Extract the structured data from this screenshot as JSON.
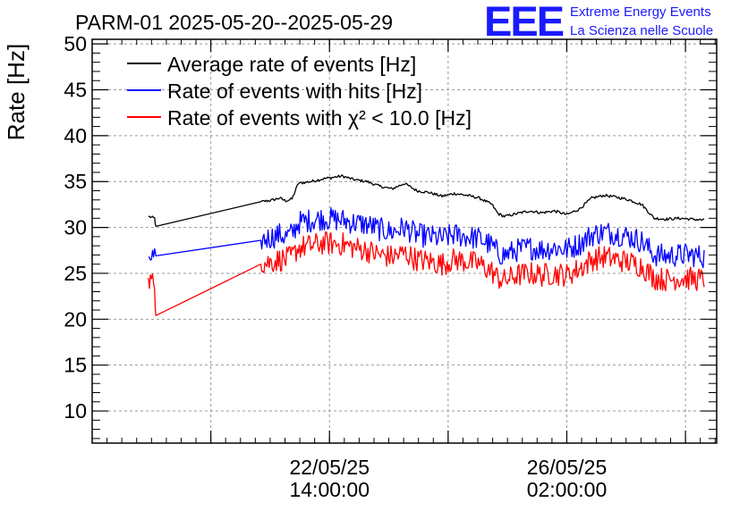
{
  "chart_data": {
    "type": "line",
    "title": "PARM-01 2025-05-20--2025-05-29",
    "ylabel": "Rate [Hz]",
    "xlabel": "",
    "ylim": [
      6.5,
      50.5
    ],
    "xlim": [
      0,
      100
    ],
    "yticks": [
      10,
      15,
      20,
      25,
      30,
      35,
      40,
      45,
      50
    ],
    "xticks": [
      {
        "x": 38,
        "line1": "22/05/25",
        "line2": "14:00:00"
      },
      {
        "x": 76,
        "line1": "26/05/25",
        "line2": "02:00:00"
      }
    ],
    "grid": true,
    "legend_position": "top-left",
    "logo": {
      "mark": "EEE",
      "line1": "Extreme Energy Events",
      "line2": "La Scienza nelle Scuole"
    },
    "series": [
      {
        "name": "Average rate of events [Hz]",
        "color": "#000000",
        "noise": 0.15,
        "x": [
          9,
          10,
          10.2,
          27,
          29,
          30,
          31,
          32,
          33,
          35,
          37,
          40,
          42,
          44,
          46,
          48,
          50,
          52,
          54,
          56,
          58,
          60,
          62,
          64,
          65,
          66,
          68,
          70,
          72,
          74,
          76,
          78,
          80,
          82,
          84,
          86,
          88,
          90,
          92,
          94,
          96,
          98
        ],
        "y": [
          31.2,
          31.0,
          30.0,
          32.8,
          33.0,
          33.2,
          32.9,
          33.1,
          34.8,
          35.0,
          35.3,
          35.6,
          35.2,
          35.0,
          34.5,
          34.2,
          34.8,
          34.0,
          33.8,
          33.4,
          33.7,
          33.5,
          33.2,
          32.5,
          31.5,
          31.2,
          31.5,
          31.8,
          31.6,
          31.8,
          31.4,
          32.0,
          33.2,
          33.5,
          33.3,
          33.0,
          32.5,
          31.0,
          30.9,
          31.0,
          30.9,
          30.8
        ]
      },
      {
        "name": "Rate of events with hits [Hz]",
        "color": "#0000ff",
        "noise": 1.3,
        "x": [
          9,
          10,
          10.2,
          27,
          29,
          30,
          31,
          32,
          33,
          35,
          37,
          40,
          42,
          44,
          46,
          48,
          50,
          52,
          54,
          56,
          58,
          60,
          62,
          64,
          65,
          66,
          68,
          70,
          72,
          74,
          76,
          78,
          80,
          82,
          84,
          86,
          88,
          90,
          92,
          94,
          96,
          98
        ],
        "y": [
          26.8,
          26.6,
          25.7,
          28.6,
          29.0,
          29.2,
          29.0,
          29.3,
          30.5,
          30.8,
          31.0,
          30.8,
          30.5,
          30.3,
          29.8,
          29.5,
          30.0,
          29.2,
          29.0,
          28.8,
          29.2,
          29.0,
          28.8,
          28.0,
          27.2,
          27.0,
          27.5,
          27.8,
          27.6,
          27.8,
          27.6,
          28.2,
          29.2,
          29.5,
          29.3,
          29.0,
          28.5,
          27.0,
          26.9,
          27.0,
          27.0,
          26.8
        ]
      },
      {
        "name": "Rate of events with χ² < 10.0 [Hz]",
        "color": "#ff0000",
        "noise": 1.3,
        "x": [
          9,
          10,
          10.2,
          27,
          29,
          30,
          31,
          32,
          33,
          35,
          37,
          40,
          42,
          44,
          46,
          48,
          50,
          52,
          54,
          56,
          58,
          60,
          62,
          64,
          65,
          66,
          68,
          70,
          72,
          74,
          76,
          78,
          80,
          82,
          84,
          86,
          88,
          90,
          92,
          94,
          96,
          98
        ],
        "y": [
          24.5,
          23.5,
          21.4,
          26.0,
          26.3,
          26.5,
          26.5,
          26.8,
          27.8,
          28.0,
          28.3,
          28.2,
          27.8,
          27.5,
          27.0,
          26.8,
          27.2,
          26.5,
          26.3,
          26.0,
          26.5,
          26.3,
          26.0,
          25.2,
          24.5,
          24.2,
          24.8,
          25.0,
          24.8,
          25.0,
          24.8,
          25.5,
          26.5,
          26.8,
          26.5,
          26.2,
          25.8,
          24.5,
          24.3,
          24.5,
          24.4,
          24.3
        ]
      }
    ]
  }
}
